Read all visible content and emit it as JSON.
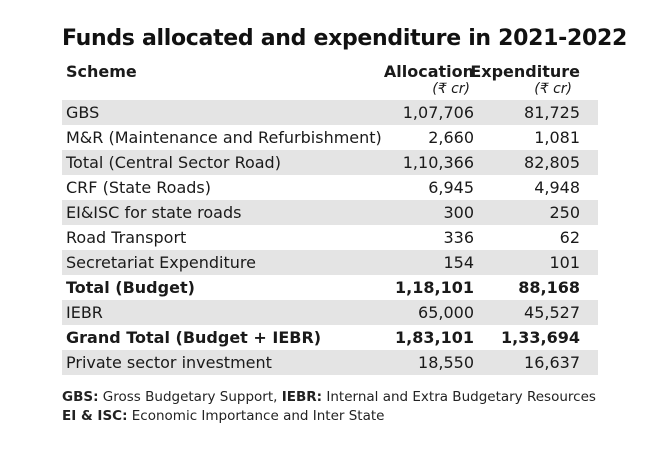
{
  "title": "Funds allocated and expenditure in 2021-2022",
  "header": {
    "scheme": "Scheme",
    "allocation": "Allocation",
    "expenditure": "Expenditure",
    "allocation_unit": "(₹ cr)",
    "expenditure_unit": "(₹ cr)"
  },
  "chart_data": {
    "type": "table",
    "title": "Funds allocated and expenditure in 2021-2022",
    "columns": [
      "Scheme",
      "Allocation (₹ cr)",
      "Expenditure (₹ cr)"
    ],
    "rows": [
      {
        "scheme": "GBS",
        "allocation": "1,07,706",
        "expenditure": "81,725",
        "bold": false
      },
      {
        "scheme": "M&R (Maintenance and Refurbishment)",
        "allocation": "2,660",
        "expenditure": "1,081",
        "bold": false
      },
      {
        "scheme": "Total (Central Sector Road)",
        "allocation": "1,10,366",
        "expenditure": "82,805",
        "bold": false
      },
      {
        "scheme": "CRF (State Roads)",
        "allocation": "6,945",
        "expenditure": "4,948",
        "bold": false
      },
      {
        "scheme": "EI&ISC for state roads",
        "allocation": "300",
        "expenditure": "250",
        "bold": false
      },
      {
        "scheme": "Road Transport",
        "allocation": "336",
        "expenditure": "62",
        "bold": false
      },
      {
        "scheme": "Secretariat Expenditure",
        "allocation": "154",
        "expenditure": "101",
        "bold": false
      },
      {
        "scheme": "Total (Budget)",
        "allocation": "1,18,101",
        "expenditure": "88,168",
        "bold": true
      },
      {
        "scheme": "IEBR",
        "allocation": "65,000",
        "expenditure": "45,527",
        "bold": false
      },
      {
        "scheme": "Grand Total (Budget + IEBR)",
        "allocation": "1,83,101",
        "expenditure": "1,33,694",
        "bold": true
      },
      {
        "scheme": "Private sector investment",
        "allocation": "18,550",
        "expenditure": "16,637",
        "bold": false
      }
    ]
  },
  "footnotes": [
    {
      "abbr": "GBS:",
      "text": " Gross Budgetary Support, ",
      "abbr2": "IEBR:",
      "text2": " Internal and Extra Budgetary Resources"
    },
    {
      "abbr": "EI & ISC:",
      "text": " Economic Importance and Inter State",
      "abbr2": "",
      "text2": ""
    }
  ],
  "colors": {
    "row_shade": "#e4e4e4",
    "text": "#1a1a1a"
  }
}
